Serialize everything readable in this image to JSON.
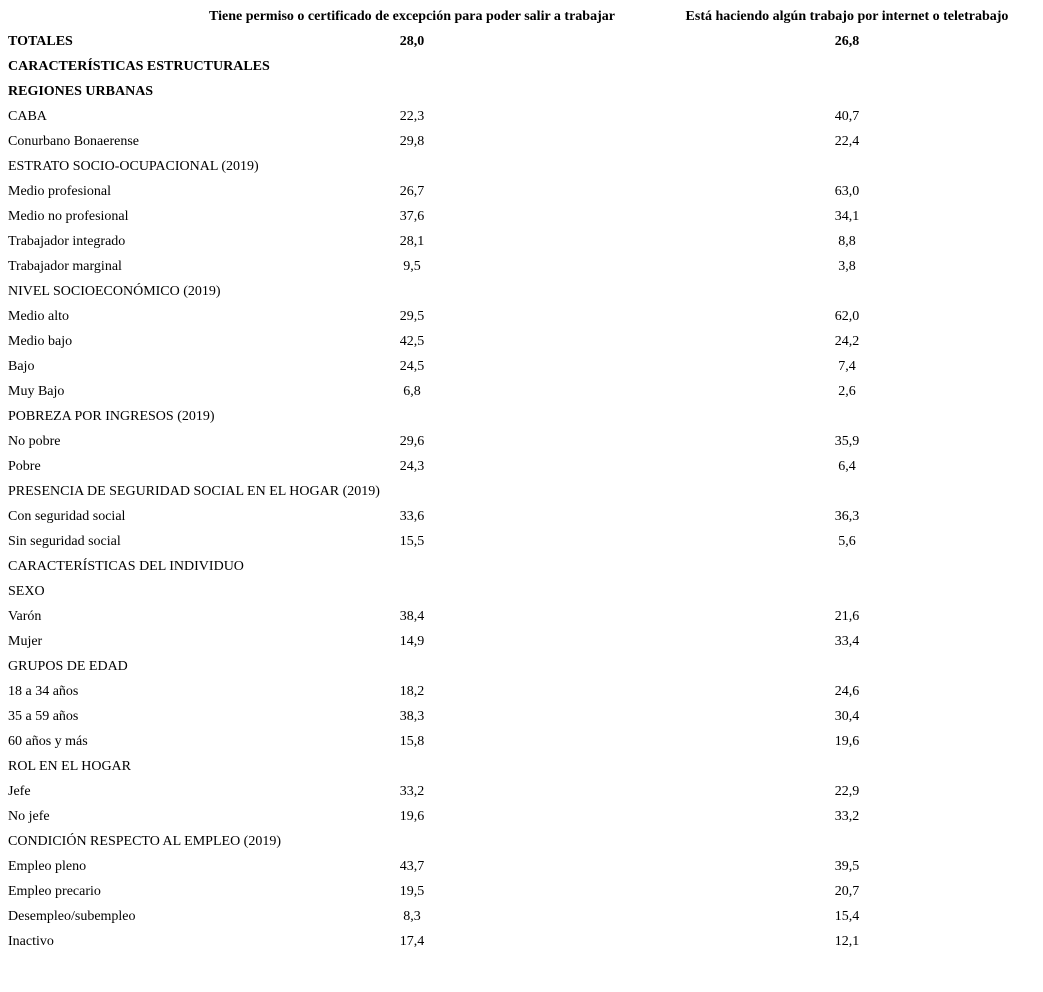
{
  "table": {
    "header": [
      "Tiene permiso o certificado de excepción para poder salir a trabajar",
      "Está haciendo algún trabajo por internet o teletrabajo"
    ],
    "rows": [
      {
        "label": "TOTALES",
        "bold": true,
        "values": [
          "28,0",
          "26,8"
        ]
      },
      {
        "label": "CARACTERÍSTICAS ESTRUCTURALES",
        "bold": true
      },
      {
        "label": "REGIONES URBANAS",
        "bold": true
      },
      {
        "label": "CABA",
        "values": [
          "22,3",
          "40,7"
        ]
      },
      {
        "label": "Conurbano Bonaerense",
        "values": [
          "29,8",
          "22,4"
        ]
      },
      {
        "label": "ESTRATO SOCIO-OCUPACIONAL (2019)"
      },
      {
        "label": "Medio profesional",
        "values": [
          "26,7",
          "63,0"
        ]
      },
      {
        "label": "Medio no profesional",
        "values": [
          "37,6",
          "34,1"
        ]
      },
      {
        "label": "Trabajador integrado",
        "values": [
          "28,1",
          "8,8"
        ]
      },
      {
        "label": "Trabajador marginal",
        "values": [
          "9,5",
          "3,8"
        ]
      },
      {
        "label": "NIVEL SOCIOECONÓMICO (2019)"
      },
      {
        "label": "Medio alto",
        "values": [
          "29,5",
          "62,0"
        ]
      },
      {
        "label": "Medio bajo",
        "values": [
          "42,5",
          "24,2"
        ]
      },
      {
        "label": "Bajo",
        "values": [
          "24,5",
          "7,4"
        ]
      },
      {
        "label": "Muy Bajo",
        "values": [
          "6,8",
          "2,6"
        ]
      },
      {
        "label": "POBREZA POR INGRESOS (2019)"
      },
      {
        "label": "No pobre",
        "values": [
          "29,6",
          "35,9"
        ]
      },
      {
        "label": "Pobre",
        "values": [
          "24,3",
          "6,4"
        ]
      },
      {
        "label": "PRESENCIA DE SEGURIDAD SOCIAL EN EL HOGAR (2019)"
      },
      {
        "label": "Con seguridad social",
        "values": [
          "33,6",
          "36,3"
        ]
      },
      {
        "label": "Sin seguridad social",
        "values": [
          "15,5",
          "5,6"
        ]
      },
      {
        "label": "CARACTERÍSTICAS DEL INDIVIDUO"
      },
      {
        "label": "SEXO"
      },
      {
        "label": "Varón",
        "values": [
          "38,4",
          "21,6"
        ]
      },
      {
        "label": "Mujer",
        "values": [
          "14,9",
          "33,4"
        ]
      },
      {
        "label": "GRUPOS DE EDAD"
      },
      {
        "label": "18 a 34 años",
        "values": [
          "18,2",
          "24,6"
        ]
      },
      {
        "label": "35 a 59 años",
        "values": [
          "38,3",
          "30,4"
        ]
      },
      {
        "label": "60 años y más",
        "values": [
          "15,8",
          "19,6"
        ]
      },
      {
        "label": "ROL EN EL HOGAR"
      },
      {
        "label": "Jefe",
        "values": [
          "33,2",
          "22,9"
        ]
      },
      {
        "label": "No jefe",
        "values": [
          "19,6",
          "33,2"
        ]
      },
      {
        "label": "CONDICIÓN RESPECTO AL EMPLEO (2019)"
      },
      {
        "label": "Empleo pleno",
        "values": [
          "43,7",
          "39,5"
        ]
      },
      {
        "label": "Empleo precario",
        "values": [
          "19,5",
          "20,7"
        ]
      },
      {
        "label": "Desempleo/subempleo",
        "values": [
          "8,3",
          "15,4"
        ]
      },
      {
        "label": "Inactivo",
        "values": [
          "17,4",
          "12,1"
        ]
      }
    ]
  }
}
